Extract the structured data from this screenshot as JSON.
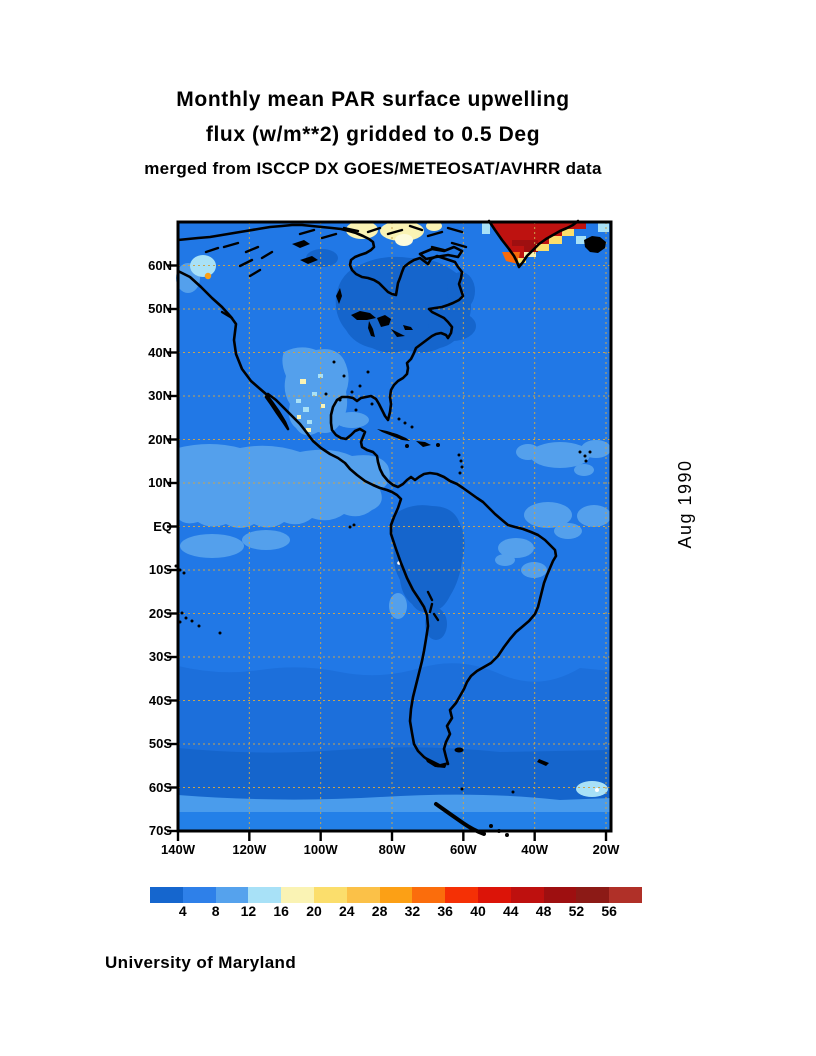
{
  "title": {
    "line1": "Monthly mean PAR surface upwelling",
    "line2": "flux (w/m**2) gridded to 0.5 Deg",
    "line3": "merged from ISCCP DX GOES/METEOSAT/AVHRR data"
  },
  "side_label": "Aug 1990",
  "credit": "University of Maryland",
  "map": {
    "lat_ticks": [
      {
        "label": "60N",
        "lat": 60
      },
      {
        "label": "50N",
        "lat": 50
      },
      {
        "label": "40N",
        "lat": 40
      },
      {
        "label": "30N",
        "lat": 30
      },
      {
        "label": "20N",
        "lat": 20
      },
      {
        "label": "10N",
        "lat": 10
      },
      {
        "label": "EQ",
        "lat": 0
      },
      {
        "label": "10S",
        "lat": -10
      },
      {
        "label": "20S",
        "lat": -20
      },
      {
        "label": "30S",
        "lat": -30
      },
      {
        "label": "40S",
        "lat": -40
      },
      {
        "label": "50S",
        "lat": -50
      },
      {
        "label": "60S",
        "lat": -60
      },
      {
        "label": "70S",
        "lat": -70
      }
    ],
    "lon_ticks": [
      {
        "label": "140W",
        "lon": 140
      },
      {
        "label": "120W",
        "lon": 120
      },
      {
        "label": "100W",
        "lon": 100
      },
      {
        "label": "80W",
        "lon": 80
      },
      {
        "label": "60W",
        "lon": 60
      },
      {
        "label": "40W",
        "lon": 40
      },
      {
        "label": "20W",
        "lon": 20
      }
    ],
    "grid_color": "#C8A34F",
    "ocean_color": "#2178E6",
    "coast_color": "#000000"
  },
  "colorbar": {
    "tick_labels": [
      "4",
      "8",
      "12",
      "16",
      "20",
      "24",
      "28",
      "32",
      "36",
      "40",
      "44",
      "48",
      "52",
      "56"
    ],
    "colors": [
      "#1566CE",
      "#2E80E9",
      "#55A2ED",
      "#A8E1F7",
      "#FAF3B4",
      "#FBDE6C",
      "#FBC148",
      "#FCA015",
      "#FB6D0C",
      "#F53005",
      "#DC1408",
      "#BE100E",
      "#9E0F10",
      "#8C1A16",
      "#B03028"
    ]
  },
  "chart_data": {
    "type": "heatmap",
    "title": "Monthly mean PAR surface upwelling flux (w/m**2) gridded to 0.5 Deg",
    "subtitle": "merged from ISCCP DX GOES/METEOSAT/AVHRR data",
    "date": "Aug 1990",
    "units": "w/m**2",
    "lon_range_deg_west": [
      140,
      20
    ],
    "lat_range": [
      "70N",
      "70S"
    ],
    "scale_breaks": [
      4,
      8,
      12,
      16,
      20,
      24,
      28,
      32,
      36,
      40,
      44,
      48,
      52,
      56
    ],
    "scale_colors": [
      "#1566CE",
      "#2E80E9",
      "#55A2ED",
      "#A8E1F7",
      "#FAF3B4",
      "#FBDE6C",
      "#FBC148",
      "#FCA015",
      "#FB6D0C",
      "#F53005",
      "#DC1408",
      "#BE100E",
      "#9E0F10",
      "#8C1A16",
      "#B03028"
    ],
    "notable_features": [
      "Ocean background mostly 4-8 w/m**2 (blue)",
      "Scattered 8-12 cloud patches (light blue) in tropics and US southwest",
      "Dark blue <4 over eastern Canada, Amazon basin and Southern Ocean",
      "High values 40-56+ (red) over Greenland ice sheet with orange/yellow fringe",
      "Pale yellow 16-20 over Arctic islands",
      "Light 8-12 band near Antarctic coast"
    ],
    "legend_position": "bottom",
    "grid": "dashed tan graticule every 10 deg lat / 20 deg lon"
  }
}
